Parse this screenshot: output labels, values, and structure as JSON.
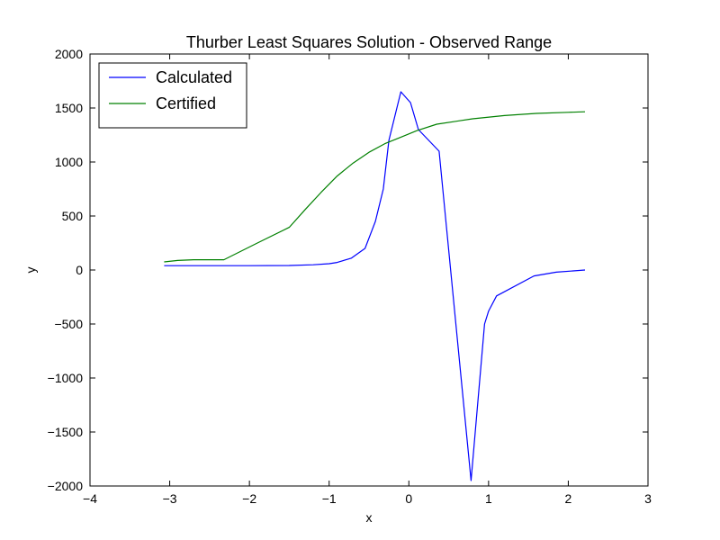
{
  "chart_data": {
    "type": "line",
    "title": "Thurber Least Squares Solution - Observed Range",
    "xlabel": "x",
    "ylabel": "y",
    "xlim": [
      -4,
      3
    ],
    "ylim": [
      -2000,
      2000
    ],
    "xticks": [
      -4,
      -3,
      -2,
      -1,
      0,
      1,
      2,
      3
    ],
    "yticks": [
      -2000,
      -1500,
      -1000,
      -500,
      0,
      500,
      1000,
      1500,
      2000
    ],
    "xtick_labels": [
      "−4",
      "−3",
      "−2",
      "−1",
      "0",
      "1",
      "2",
      "3"
    ],
    "ytick_labels": [
      "−2000",
      "−1500",
      "−1000",
      "−500",
      "0",
      "500",
      "1000",
      "1500",
      "2000"
    ],
    "grid": false,
    "legend_position": "top-left",
    "series": [
      {
        "name": "Calculated",
        "color": "#0000ff",
        "x": [
          -3.07,
          -2.5,
          -2.0,
          -1.5,
          -1.2,
          -1.0,
          -0.9,
          -0.72,
          -0.55,
          -0.42,
          -0.32,
          -0.25,
          -0.1,
          0.02,
          0.12,
          0.38,
          0.78,
          0.95,
          1.0,
          1.1,
          1.57,
          1.85,
          2.21
        ],
        "y": [
          40,
          40,
          40,
          42,
          48,
          58,
          70,
          110,
          200,
          450,
          750,
          1200,
          1650,
          1550,
          1300,
          1100,
          -1950,
          -500,
          -380,
          -240,
          -55,
          -20,
          0
        ]
      },
      {
        "name": "Certified",
        "color": "#008000",
        "x": [
          -3.07,
          -2.9,
          -2.7,
          -2.5,
          -2.32,
          -1.9,
          -1.5,
          -1.3,
          -1.1,
          -0.9,
          -0.7,
          -0.5,
          -0.3,
          -0.1,
          0.1,
          0.35,
          0.8,
          1.2,
          1.6,
          2.0,
          2.21
        ],
        "y": [
          75,
          88,
          95,
          95,
          95,
          250,
          395,
          560,
          720,
          870,
          990,
          1090,
          1170,
          1230,
          1290,
          1350,
          1400,
          1430,
          1450,
          1460,
          1465
        ]
      }
    ]
  }
}
